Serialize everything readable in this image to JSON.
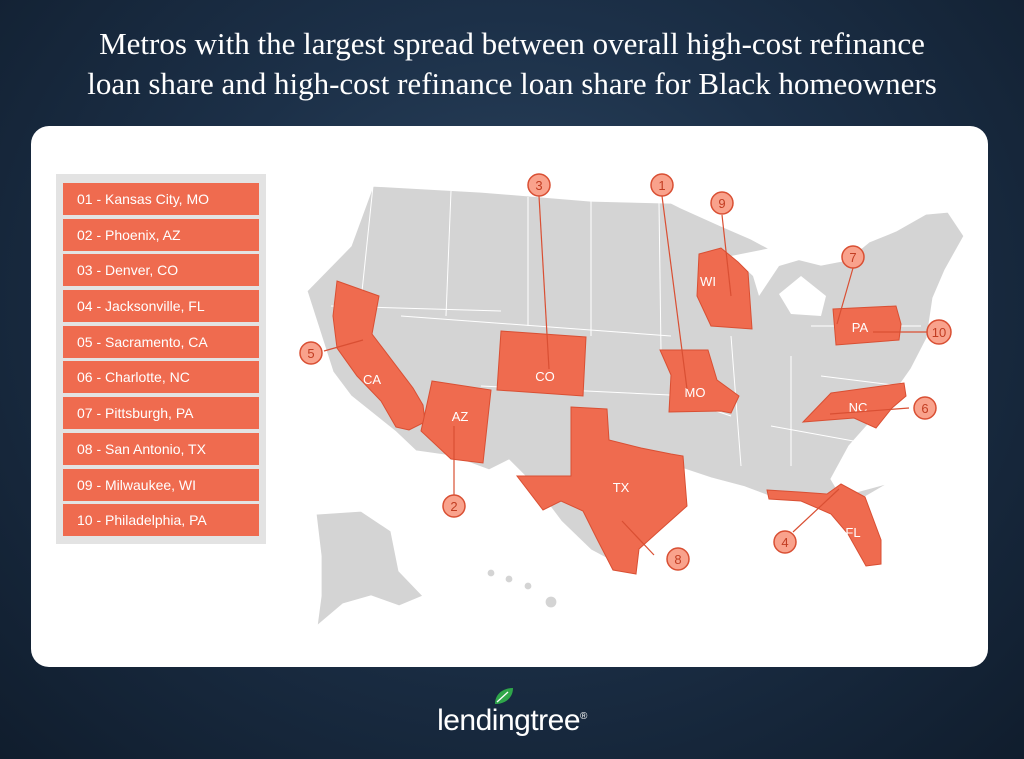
{
  "title": {
    "line1": "Metros with the largest spread between overall high-cost refinance",
    "line2": "loan share and high-cost refinance loan share for Black homeowners"
  },
  "legend": [
    "01 - Kansas City, MO",
    "02 - Phoenix, AZ",
    "03 - Denver, CO",
    "04 - Jacksonville, FL",
    "05 - Sacramento, CA",
    "06 - Charlotte, NC",
    "07 - Pittsburgh, PA",
    "08 - San Antonio, TX",
    "09 - Milwaukee, WI",
    "10 - Philadelphia, PA"
  ],
  "states": {
    "mo": "MO",
    "az": "AZ",
    "co": "CO",
    "fl": "FL",
    "ca": "CA",
    "nc": "NC",
    "pa": "PA",
    "tx": "TX",
    "wi": "WI"
  },
  "markers": {
    "m1": "1",
    "m2": "2",
    "m3": "3",
    "m4": "4",
    "m5": "5",
    "m6": "6",
    "m7": "7",
    "m8": "8",
    "m9": "9",
    "m10": "10"
  },
  "logo": {
    "text": "lendingtree",
    "reg": "®"
  },
  "colors": {
    "highlight": "#ef6b4f",
    "map_base": "#d4d4d4",
    "legend_bg": "#e3e3e3",
    "marker_fill": "#f9a28c",
    "leaf": "#2fa64a"
  }
}
